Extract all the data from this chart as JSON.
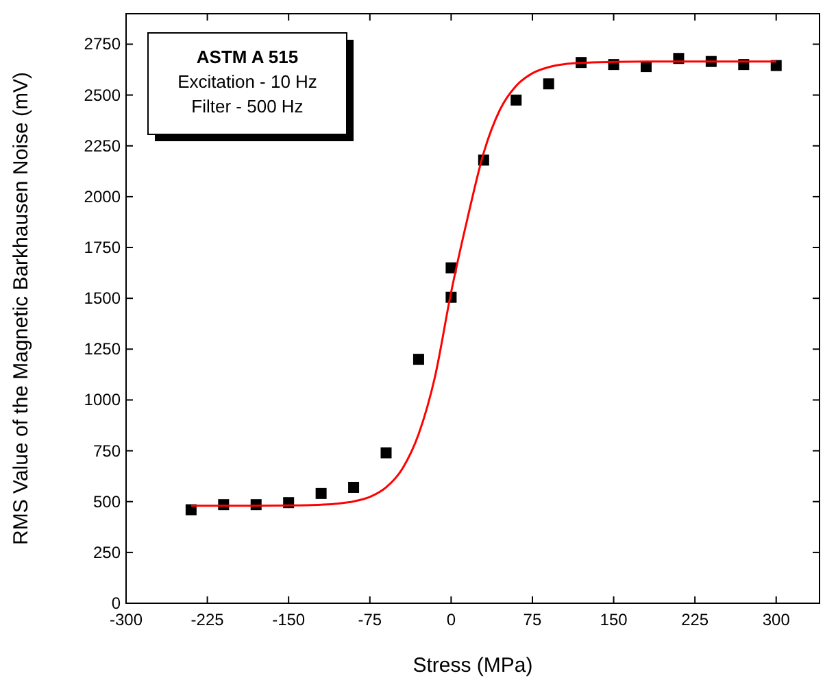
{
  "chart_data": {
    "type": "scatter",
    "xlabel": "Stress (MPa)",
    "ylabel": "RMS Value of the Magnetic Barkhausen Noise (mV)",
    "xlim": [
      -300,
      340
    ],
    "xticks": [
      -300,
      -225,
      -150,
      -75,
      0,
      75,
      150,
      225,
      300
    ],
    "ylim": [
      0,
      2900
    ],
    "yticks": [
      0,
      250,
      500,
      750,
      1000,
      1250,
      1500,
      1750,
      2000,
      2250,
      2500,
      2750
    ],
    "grid": false,
    "annotations": [
      "ASTM A 515",
      "Excitation - 10 Hz",
      "Filter - 500 Hz"
    ],
    "series": [
      {
        "color": "#000000",
        "marker": "square",
        "x": [
          -240,
          -210,
          -180,
          -150,
          -120,
          -90,
          -60,
          -30,
          0,
          0,
          30,
          60,
          90,
          120,
          150,
          180,
          210,
          240,
          270,
          300
        ],
        "values": [
          460,
          485,
          485,
          495,
          540,
          570,
          740,
          1200,
          1650,
          1505,
          2180,
          2475,
          2555,
          2660,
          2650,
          2640,
          2680,
          2665,
          2650,
          2645
        ]
      },
      {
        "type": "line",
        "color": "#ff0000",
        "marker": "none",
        "line_style": "solid",
        "x": [
          -240,
          -180,
          -150,
          -120,
          -105,
          -90,
          -75,
          -60,
          -45,
          -30,
          -15,
          0,
          15,
          30,
          45,
          60,
          75,
          90,
          105,
          120,
          150,
          180,
          300
        ],
        "values": [
          480,
          480,
          481,
          485,
          490,
          501,
          523,
          570,
          662,
          832,
          1112,
          1530,
          1891,
          2215,
          2427,
          2545,
          2607,
          2637,
          2652,
          2658,
          2663,
          2665,
          2665
        ]
      }
    ]
  }
}
